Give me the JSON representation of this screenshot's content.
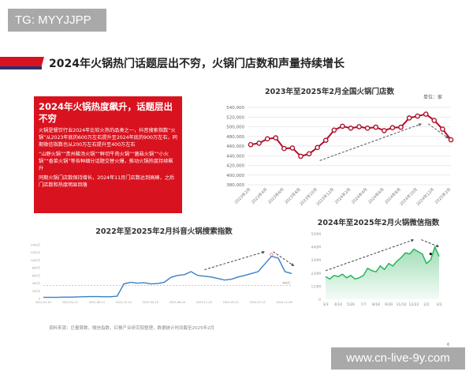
{
  "watermark_top": "TG: MYYJJPP",
  "watermark_bottom": "www.cn-live-9y.com",
  "page_title": "2024年火锅热门话题层出不穷，火锅门店数和声量持续增长",
  "summary": {
    "heading": "2024年火锅热度飙升，话题层出不穷",
    "paragraphs": [
      "火锅是餐饮行业2024年比较火热的品类之一，抖音搜索指数“火锅”从2023年底的600万左右提升至2024年底的900万左右，同期微信指数也从200万左右提升至400万左右",
      "“山野火锅”“贵州酸汤火锅”“鲜切牛肉火锅”“菌菇火锅”“小火锅”“香菜火锅”等各种细分话题交替火爆，推动火锅热度持续飙升",
      "同期火锅门店数保持增长，2024年11月门店数达到高峰，之后门店数和热度明显回落"
    ]
  },
  "source": "资料来源：巨量算数，微信指数，红餐产业研究院整理，数据统计时间截至2025年2月",
  "page_number": "6",
  "chart_data": [
    {
      "type": "line",
      "title": "2023年至2025年2月全国火锅门店数",
      "unit": "单位：家",
      "color": "#b0102a",
      "ylim": [
        380000,
        540000
      ],
      "yticks": [
        "380,000",
        "400,000",
        "420,000",
        "440,000",
        "460,000",
        "480,000",
        "500,000",
        "520,000",
        "540,000"
      ],
      "x": [
        "2023年2月",
        "2023年3月",
        "2023年4月",
        "2023年5月",
        "2023年6月",
        "2023年7月",
        "2023年8月",
        "2023年9月",
        "2023年10月",
        "2023年11月",
        "2023年12月",
        "2024年1月",
        "2024年2月",
        "2024年3月",
        "2024年4月",
        "2024年5月",
        "2024年6月",
        "2024年7月",
        "2024年8月",
        "2024年9月",
        "2024年10月",
        "2024年11月",
        "2024年12月",
        "2025年1月",
        "2025年2月"
      ],
      "xticks": [
        "2023年2月",
        "2023年4月",
        "2023年6月",
        "2023年8月",
        "2023年10月",
        "2023年12月",
        "2024年2月",
        "2024年4月",
        "2024年6月",
        "2024年8月",
        "2024年10月",
        "2024年12月",
        "2025年2月"
      ],
      "values": [
        463000,
        466000,
        475000,
        477000,
        455000,
        456000,
        439000,
        444000,
        457000,
        472000,
        493000,
        501000,
        497000,
        500000,
        497000,
        499000,
        492000,
        498000,
        499000,
        518000,
        522000,
        526000,
        513000,
        495000,
        473000
      ],
      "grid": true
    },
    {
      "type": "line",
      "title": "2022年至2025年2月抖音火锅搜索指数",
      "color": "#3a7fc4",
      "ylim": [
        0,
        14000000
      ],
      "yticks": [
        "0",
        "200万",
        "400万",
        "600万",
        "800万",
        "1000万",
        "1200万",
        "1400万"
      ],
      "xticks": [
        "2022-01-01",
        "2022-04-21",
        "2022-08-11",
        "2022-12-15",
        "2023-04-10",
        "2023-08-04",
        "2023-11-29",
        "2024-03-22",
        "2024-07-12",
        "2024-11-06"
      ],
      "x": [
        "2022-01",
        "2022-02",
        "2022-03",
        "2022-04",
        "2022-05",
        "2022-06",
        "2022-07",
        "2022-08",
        "2022-09",
        "2022-10",
        "2022-11",
        "2022-12",
        "2023-01",
        "2023-02",
        "2023-03",
        "2023-04",
        "2023-05",
        "2023-06",
        "2023-07",
        "2023-08",
        "2023-09",
        "2023-10",
        "2023-11",
        "2023-12",
        "2024-01",
        "2024-02",
        "2024-03",
        "2024-04",
        "2024-05",
        "2024-06",
        "2024-07",
        "2024-08",
        "2024-09",
        "2024-10",
        "2024-11",
        "2024-12",
        "2025-01",
        "2025-02"
      ],
      "values": [
        300000,
        300000,
        300000,
        350000,
        350000,
        400000,
        450000,
        500000,
        500000,
        450000,
        450000,
        600000,
        3800000,
        4200000,
        4000000,
        4100000,
        3800000,
        3900000,
        4200000,
        5500000,
        6000000,
        6200000,
        7000000,
        6000000,
        5800000,
        5600000,
        5200000,
        4800000,
        5000000,
        5600000,
        6000000,
        6500000,
        7000000,
        9000000,
        11000000,
        10500000,
        7000000,
        6500000
      ],
      "reference": {
        "value": 3400000,
        "label": "340万"
      },
      "grid": false
    },
    {
      "type": "area",
      "title": "2024年至2025年2月火锅微信指数",
      "color": "#2bb45c",
      "ylim": [
        0,
        550000000
      ],
      "yticks": [
        "0",
        "110M",
        "220M",
        "330M",
        "440M",
        "550M"
      ],
      "xticks": [
        "3/3",
        "4/14",
        "5/26",
        "7/7",
        "8/18",
        "9/29",
        "11/10",
        "12/22",
        "2/2",
        "3/2"
      ],
      "values": [
        190000000,
        170000000,
        200000000,
        190000000,
        210000000,
        180000000,
        200000000,
        170000000,
        180000000,
        200000000,
        260000000,
        240000000,
        230000000,
        280000000,
        250000000,
        300000000,
        280000000,
        320000000,
        350000000,
        390000000,
        380000000,
        420000000,
        400000000,
        380000000,
        300000000,
        330000000,
        440000000,
        360000000
      ],
      "grid": false
    }
  ]
}
